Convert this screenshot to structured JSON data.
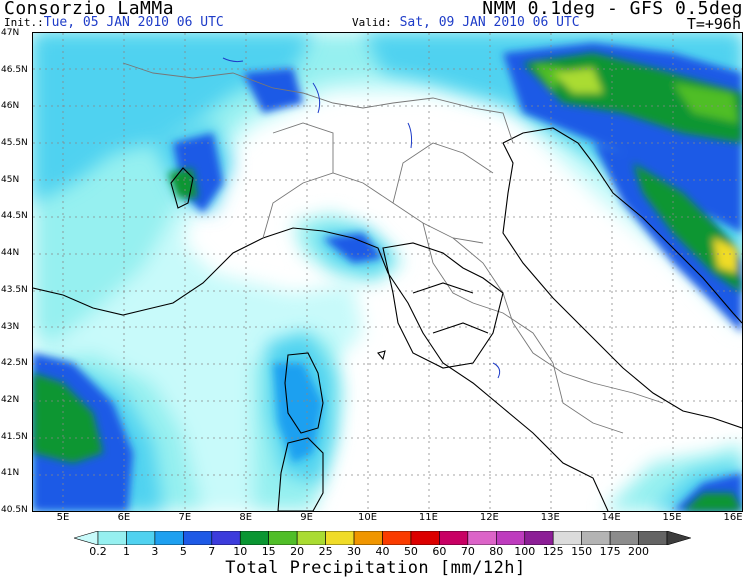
{
  "header": {
    "org": "Consorzio LaMMa",
    "init_label": "Init.:",
    "init_value": "Tue, 05 JAN 2010  06 UTC",
    "valid_label": "Valid:",
    "valid_value": "Sat, 09 JAN 2010  06 UTC",
    "model": "NMM 0.1deg - GFS 0.5deg",
    "lead": "T=+96h"
  },
  "map": {
    "lat_labels": [
      "47N",
      "46.5N",
      "46N",
      "45.5N",
      "45N",
      "44.5N",
      "44N",
      "43.5N",
      "43N",
      "42.5N",
      "42N",
      "41.5N",
      "41N",
      "40.5N"
    ],
    "lon_labels": [
      "5E",
      "6E",
      "7E",
      "8E",
      "9E",
      "10E",
      "11E",
      "12E",
      "13E",
      "14E",
      "15E",
      "16E"
    ]
  },
  "colorbar": {
    "title": "Total Precipitation [mm/12h]",
    "levels": [
      "0.2",
      "1",
      "3",
      "5",
      "7",
      "10",
      "15",
      "20",
      "25",
      "30",
      "40",
      "50",
      "60",
      "70",
      "80",
      "100",
      "125",
      "150",
      "175",
      "200"
    ],
    "colors": [
      "#c8fafa",
      "#96f0f0",
      "#50d2f0",
      "#1ea0f0",
      "#1e5ae6",
      "#3c3cdc",
      "#0a9632",
      "#50be28",
      "#aadc32",
      "#f0dc28",
      "#f09600",
      "#fa3c00",
      "#dc0000",
      "#c80064",
      "#dc64c8",
      "#be3cbe",
      "#8c1e96",
      "#dcdcdc",
      "#b4b4b4",
      "#8c8c8c",
      "#646464",
      "#3c3c3c"
    ]
  }
}
